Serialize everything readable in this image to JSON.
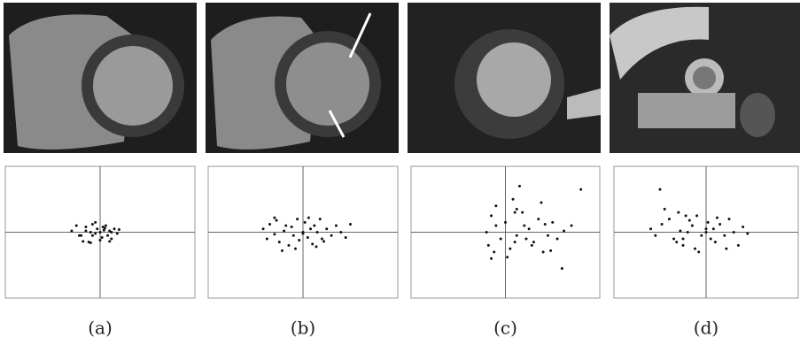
{
  "chart_data": [
    {
      "type": "scatter",
      "caption": "(a)",
      "xlim": [
        -1,
        1
      ],
      "ylim": [
        -1,
        1
      ],
      "x": [
        -0.3,
        -0.25,
        -0.2,
        -0.15,
        -0.12,
        -0.1,
        -0.08,
        -0.05,
        -0.03,
        0,
        0.02,
        0.04,
        0.06,
        0.08,
        0.1,
        0.12,
        0.15,
        0.18,
        0.2,
        -0.18,
        -0.1,
        -0.05,
        0.0,
        0.05,
        0.1,
        -0.15,
        -0.08,
        0.03,
        0.12,
        -0.22
      ],
      "y": [
        0.02,
        0.1,
        -0.05,
        0.08,
        -0.15,
        0.0,
        0.12,
        -0.02,
        0.05,
        0.0,
        -0.08,
        0.03,
        0.1,
        -0.05,
        0.02,
        -0.1,
        0.05,
        -0.02,
        0.04,
        -0.14,
        -0.16,
        0.15,
        -0.12,
        0.06,
        -0.14,
        0.02,
        -0.05,
        0.08,
        0.0,
        -0.05
      ]
    },
    {
      "type": "scatter",
      "caption": "(b)",
      "xlim": [
        -1,
        1
      ],
      "ylim": [
        -1,
        1
      ],
      "x": [
        -0.42,
        -0.38,
        -0.35,
        -0.3,
        -0.28,
        -0.25,
        -0.2,
        -0.18,
        -0.15,
        -0.12,
        -0.1,
        -0.06,
        -0.04,
        0,
        0.02,
        0.05,
        0.08,
        0.1,
        0.12,
        0.15,
        0.18,
        0.2,
        0.25,
        0.3,
        0.35,
        0.4,
        0.45,
        0.5,
        -0.22,
        -0.08,
        0.06,
        0.14,
        0.22,
        -0.3,
        0.0
      ],
      "y": [
        0.05,
        -0.1,
        0.12,
        -0.03,
        0.18,
        -0.15,
        0.02,
        0.1,
        -0.2,
        0.08,
        -0.05,
        0.2,
        -0.12,
        0.0,
        0.15,
        -0.08,
        0.05,
        -0.18,
        0.1,
        0.0,
        0.2,
        -0.1,
        0.05,
        -0.05,
        0.1,
        0.0,
        -0.08,
        0.12,
        -0.28,
        -0.25,
        0.22,
        -0.22,
        -0.14,
        0.22,
        -0.02
      ]
    },
    {
      "type": "scatter",
      "caption": "(c)",
      "xlim": [
        -1,
        1
      ],
      "ylim": [
        -1,
        1
      ],
      "x": [
        -0.2,
        -0.18,
        -0.15,
        -0.12,
        -0.1,
        -0.05,
        0,
        0.05,
        0.08,
        0.1,
        0.12,
        0.15,
        0.2,
        0.25,
        0.3,
        0.35,
        0.4,
        0.45,
        0.5,
        0.55,
        0.6,
        0.7,
        0.8,
        -0.1,
        0.02,
        0.18,
        0.28,
        0.38,
        0.48,
        0.62,
        -0.15,
        0.1,
        0.22,
        0.42,
        0.12
      ],
      "y": [
        0.0,
        -0.2,
        0.25,
        -0.3,
        0.4,
        -0.1,
        0.15,
        -0.25,
        0.5,
        0.3,
        -0.05,
        0.7,
        0.1,
        0.05,
        -0.15,
        0.2,
        -0.3,
        -0.05,
        0.15,
        -0.1,
        -0.55,
        0.1,
        0.65,
        0.1,
        -0.38,
        0.3,
        -0.2,
        0.45,
        -0.28,
        0.02,
        -0.4,
        -0.15,
        -0.1,
        0.12,
        0.35
      ]
    },
    {
      "type": "scatter",
      "caption": "(d)",
      "xlim": [
        -1,
        1
      ],
      "ylim": [
        -1,
        1
      ],
      "x": [
        -0.6,
        -0.55,
        -0.5,
        -0.45,
        -0.4,
        -0.35,
        -0.3,
        -0.28,
        -0.25,
        -0.22,
        -0.2,
        -0.15,
        -0.12,
        -0.1,
        -0.05,
        0,
        0.02,
        0.05,
        0.08,
        0.1,
        0.15,
        0.2,
        0.25,
        0.3,
        0.35,
        0.4,
        0.45,
        -0.48,
        -0.32,
        -0.18,
        -0.08,
        0.12,
        0.22,
        -0.25,
        0.0
      ],
      "y": [
        0.05,
        -0.05,
        0.65,
        0.35,
        0.2,
        -0.1,
        0.3,
        0.02,
        -0.2,
        0.25,
        0.0,
        0.1,
        -0.25,
        0.25,
        -0.05,
        0.0,
        0.15,
        -0.1,
        0.05,
        -0.15,
        0.12,
        -0.05,
        0.2,
        0.0,
        -0.2,
        0.08,
        -0.02,
        0.12,
        -0.15,
        0.18,
        -0.3,
        0.22,
        -0.25,
        -0.1,
        0.05
      ]
    }
  ]
}
